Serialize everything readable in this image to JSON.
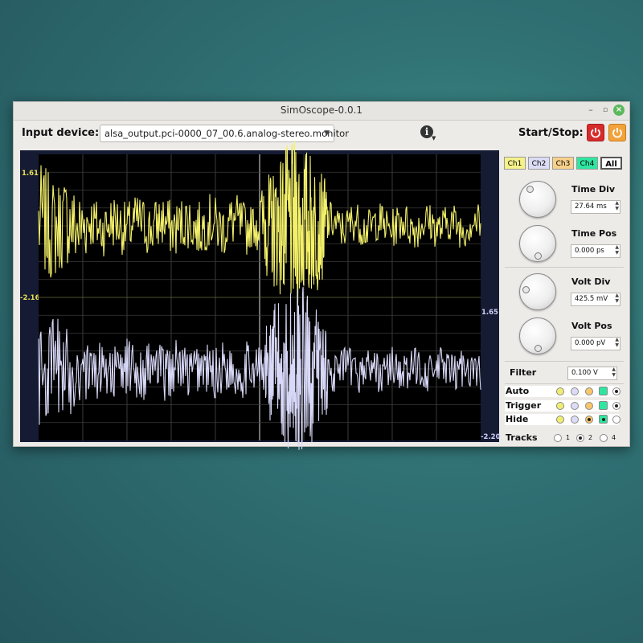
{
  "window": {
    "title": "SimOscope-0.0.1",
    "minimize": "–",
    "maximize": "▫",
    "close": "×"
  },
  "toolbar": {
    "input_device_label": "Input device:",
    "input_device_value": "alsa_output.pci-0000_07_00.6.analog-stereo.monitor",
    "start_stop_label": "Start/Stop:"
  },
  "scope": {
    "left_top_value": "1.61",
    "left_mid_value": "-2.16",
    "right_mid_value": "1.65",
    "right_bottom_value": "-2.20",
    "trace_colors": {
      "ch1": "#f3f06a",
      "ch2": "#d8d8f8"
    },
    "left_axis_color": "#e8df55",
    "right_axis_color": "#d0d0f8"
  },
  "channels": [
    {
      "label": "Ch1",
      "color": "#f5f28a"
    },
    {
      "label": "Ch2",
      "color": "#dcdcf6"
    },
    {
      "label": "Ch3",
      "color": "#f8d08a"
    },
    {
      "label": "Ch4",
      "color": "#2fe6a0"
    },
    {
      "label": "All",
      "color": "#ffffff"
    }
  ],
  "controls": {
    "time_div": {
      "label": "Time Div",
      "value": "27.64 ms"
    },
    "time_pos": {
      "label": "Time Pos",
      "value": "0.000 ps"
    },
    "volt_div": {
      "label": "Volt Div",
      "value": "425.5 mV"
    },
    "volt_pos": {
      "label": "Volt Pos",
      "value": "0.000 pV"
    },
    "filter": {
      "label": "Filter",
      "value": "0.100 V"
    }
  },
  "rows": {
    "auto": "Auto",
    "trigger": "Trigger",
    "hide": "Hide"
  },
  "tracks": {
    "label": "Tracks",
    "options": [
      "1",
      "2",
      "4"
    ],
    "selected": "2"
  }
}
